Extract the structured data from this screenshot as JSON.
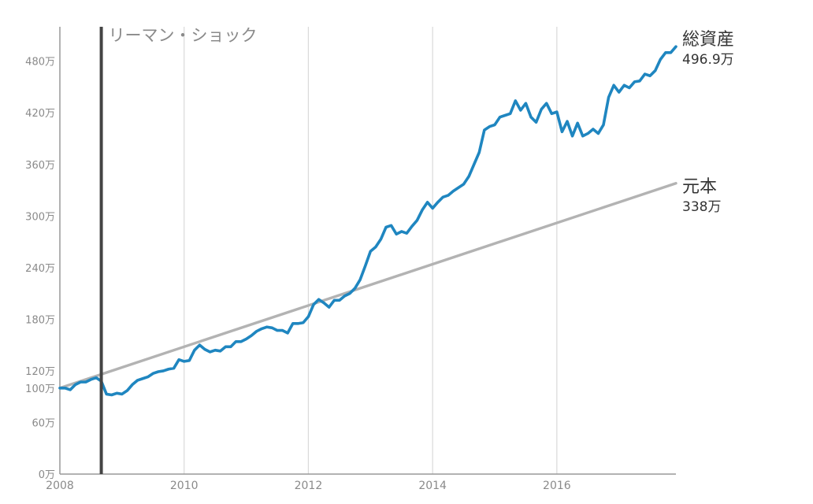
{
  "chart_data": {
    "type": "line",
    "ylim": [
      0,
      520
    ],
    "xlim": [
      "2008-01",
      "2017-12"
    ],
    "grid": "vertical",
    "y_ticks": [
      {
        "value": 0,
        "label": "0万"
      },
      {
        "value": 60,
        "label": "60万"
      },
      {
        "value": 100,
        "label": "100万"
      },
      {
        "value": 120,
        "label": "120万"
      },
      {
        "value": 180,
        "label": "180万"
      },
      {
        "value": 240,
        "label": "240万"
      },
      {
        "value": 300,
        "label": "300万"
      },
      {
        "value": 360,
        "label": "360万"
      },
      {
        "value": 420,
        "label": "420万"
      },
      {
        "value": 480,
        "label": "480万"
      }
    ],
    "x_ticks": [
      {
        "value": "2008-01",
        "label": "2008"
      },
      {
        "value": "2010-01",
        "label": "2010"
      },
      {
        "value": "2012-01",
        "label": "2012"
      },
      {
        "value": "2014-01",
        "label": "2014"
      },
      {
        "value": "2016-01",
        "label": "2016"
      }
    ],
    "event": {
      "x": "2008-09",
      "label": "リーマン・ショック",
      "color": "#444444"
    },
    "series": [
      {
        "name": "総資産",
        "end_label": "496.9万",
        "color": "#1f86c0",
        "points": [
          [
            "2008-01",
            100
          ],
          [
            "2008-02",
            100
          ],
          [
            "2008-03",
            98
          ],
          [
            "2008-04",
            104
          ],
          [
            "2008-05",
            107
          ],
          [
            "2008-06",
            107
          ],
          [
            "2008-07",
            110
          ],
          [
            "2008-08",
            112
          ],
          [
            "2008-09",
            108
          ],
          [
            "2008-10",
            93
          ],
          [
            "2008-11",
            92
          ],
          [
            "2008-12",
            94
          ],
          [
            "2009-01",
            93
          ],
          [
            "2009-02",
            97
          ],
          [
            "2009-03",
            104
          ],
          [
            "2009-04",
            109
          ],
          [
            "2009-05",
            111
          ],
          [
            "2009-06",
            113
          ],
          [
            "2009-07",
            117
          ],
          [
            "2009-08",
            119
          ],
          [
            "2009-09",
            120
          ],
          [
            "2009-10",
            122
          ],
          [
            "2009-11",
            123
          ],
          [
            "2009-12",
            133
          ],
          [
            "2010-01",
            131
          ],
          [
            "2010-02",
            132
          ],
          [
            "2010-03",
            144
          ],
          [
            "2010-04",
            150
          ],
          [
            "2010-05",
            145
          ],
          [
            "2010-06",
            142
          ],
          [
            "2010-07",
            144
          ],
          [
            "2010-08",
            143
          ],
          [
            "2010-09",
            148
          ],
          [
            "2010-10",
            148
          ],
          [
            "2010-11",
            154
          ],
          [
            "2010-12",
            154
          ],
          [
            "2011-01",
            157
          ],
          [
            "2011-02",
            161
          ],
          [
            "2011-03",
            166
          ],
          [
            "2011-04",
            169
          ],
          [
            "2011-05",
            171
          ],
          [
            "2011-06",
            170
          ],
          [
            "2011-07",
            167
          ],
          [
            "2011-08",
            167
          ],
          [
            "2011-09",
            164
          ],
          [
            "2011-10",
            175
          ],
          [
            "2011-11",
            175
          ],
          [
            "2011-12",
            176
          ],
          [
            "2012-01",
            183
          ],
          [
            "2012-02",
            197
          ],
          [
            "2012-03",
            203
          ],
          [
            "2012-04",
            199
          ],
          [
            "2012-05",
            194
          ],
          [
            "2012-06",
            202
          ],
          [
            "2012-07",
            202
          ],
          [
            "2012-08",
            207
          ],
          [
            "2012-09",
            210
          ],
          [
            "2012-10",
            216
          ],
          [
            "2012-11",
            226
          ],
          [
            "2012-12",
            242
          ],
          [
            "2013-01",
            259
          ],
          [
            "2013-02",
            264
          ],
          [
            "2013-03",
            273
          ],
          [
            "2013-04",
            287
          ],
          [
            "2013-05",
            289
          ],
          [
            "2013-06",
            279
          ],
          [
            "2013-07",
            282
          ],
          [
            "2013-08",
            280
          ],
          [
            "2013-09",
            288
          ],
          [
            "2013-10",
            295
          ],
          [
            "2013-11",
            307
          ],
          [
            "2013-12",
            316
          ],
          [
            "2014-01",
            309
          ],
          [
            "2014-02",
            316
          ],
          [
            "2014-03",
            322
          ],
          [
            "2014-04",
            324
          ],
          [
            "2014-05",
            329
          ],
          [
            "2014-06",
            333
          ],
          [
            "2014-07",
            337
          ],
          [
            "2014-08",
            346
          ],
          [
            "2014-09",
            360
          ],
          [
            "2014-10",
            374
          ],
          [
            "2014-11",
            400
          ],
          [
            "2014-12",
            404
          ],
          [
            "2015-01",
            406
          ],
          [
            "2015-02",
            415
          ],
          [
            "2015-03",
            417
          ],
          [
            "2015-04",
            419
          ],
          [
            "2015-05",
            434
          ],
          [
            "2015-06",
            423
          ],
          [
            "2015-07",
            431
          ],
          [
            "2015-08",
            415
          ],
          [
            "2015-09",
            409
          ],
          [
            "2015-10",
            424
          ],
          [
            "2015-11",
            431
          ],
          [
            "2015-12",
            419
          ],
          [
            "2016-01",
            421
          ],
          [
            "2016-02",
            398
          ],
          [
            "2016-03",
            410
          ],
          [
            "2016-04",
            393
          ],
          [
            "2016-05",
            408
          ],
          [
            "2016-06",
            393
          ],
          [
            "2016-07",
            396
          ],
          [
            "2016-08",
            401
          ],
          [
            "2016-09",
            396
          ],
          [
            "2016-10",
            406
          ],
          [
            "2016-11",
            438
          ],
          [
            "2016-12",
            452
          ],
          [
            "2017-01",
            444
          ],
          [
            "2017-02",
            452
          ],
          [
            "2017-03",
            449
          ],
          [
            "2017-04",
            456
          ],
          [
            "2017-05",
            457
          ],
          [
            "2017-06",
            465
          ],
          [
            "2017-07",
            463
          ],
          [
            "2017-08",
            469
          ],
          [
            "2017-09",
            482
          ],
          [
            "2017-10",
            490
          ],
          [
            "2017-11",
            490
          ],
          [
            "2017-12",
            496.9
          ]
        ]
      },
      {
        "name": "元本",
        "end_label": "338万",
        "color": "#b3b3b3",
        "points": [
          [
            "2008-01",
            100
          ],
          [
            "2017-12",
            338
          ]
        ]
      }
    ]
  }
}
